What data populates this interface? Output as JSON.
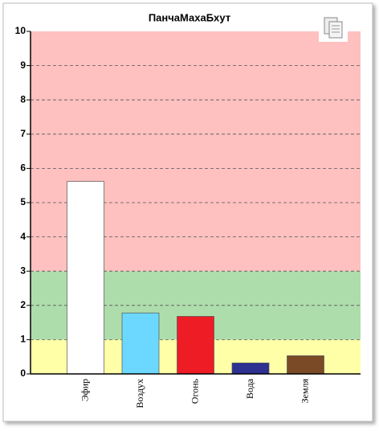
{
  "chart_data": {
    "type": "bar",
    "title": "ПанчаМахаБхут",
    "categories": [
      "Эфир",
      "Воздух",
      "Огонь",
      "Вода",
      "Земля"
    ],
    "values": [
      5.62,
      1.78,
      1.68,
      0.32,
      0.53
    ],
    "colors": [
      "#ffffff",
      "#6cd8ff",
      "#ee1c25",
      "#2e3192",
      "#7a4a26"
    ],
    "ylim": [
      0,
      10
    ],
    "yticks": [
      0,
      1,
      2,
      3,
      4,
      5,
      6,
      7,
      8,
      9,
      10
    ],
    "grid": true,
    "bands": [
      {
        "from": 0,
        "to": 1,
        "color": "#ffffa8"
      },
      {
        "from": 1,
        "to": 3,
        "color": "#aeddac"
      },
      {
        "from": 3,
        "to": 10,
        "color": "#ffc0c0"
      }
    ]
  }
}
